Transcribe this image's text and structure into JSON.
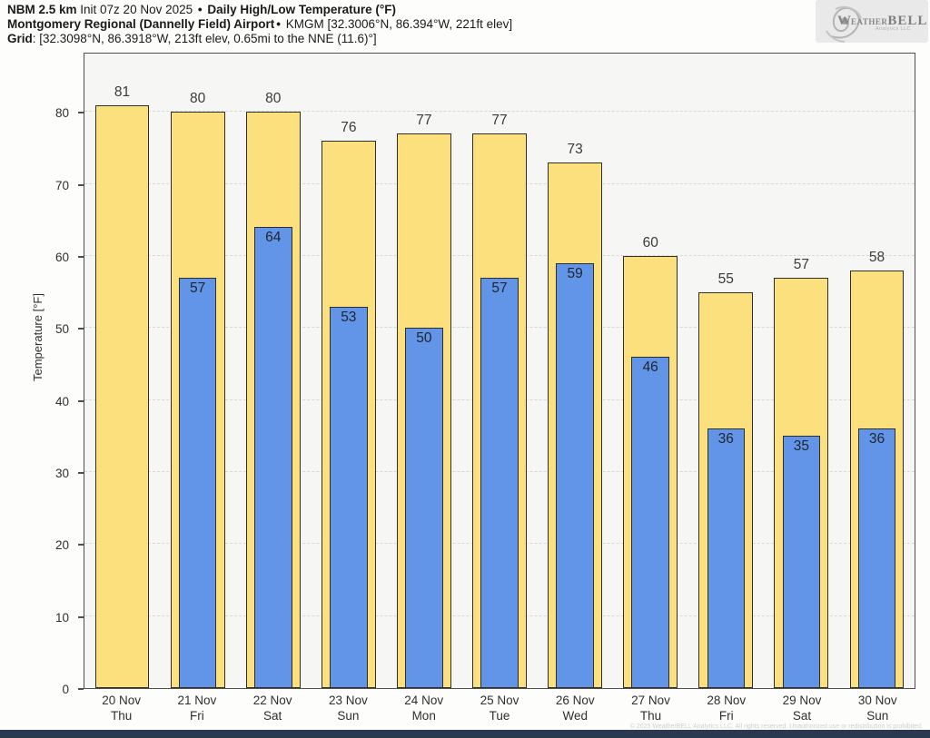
{
  "header": {
    "model": "NBM 2.5 km",
    "init": " Init 07z 20 Nov 2025 ",
    "separator": "•",
    "product": " Daily High/Low Temperature (°F)",
    "station": "Montgomery Regional (Dannelly Field) Airport",
    "station_info": " KMGM [32.3006°N, 86.394°W, 221ft elev]",
    "grid_label": "Grid",
    "grid_info": ": [32.3098°N, 86.3918°W, 213ft elev, 0.65mi to the NNE (11.6)°]"
  },
  "logo": {
    "brand_w": "W",
    "brand_eather": "EATHER",
    "brand_bell": "BELL",
    "subtext": "Analytics LLC"
  },
  "footer": {
    "copyright": "© 2025 WeatherBELL Analytics LLC. All rights reserved. Unauthorized use or redistribution is prohibited."
  },
  "chart_data": {
    "type": "bar",
    "title": "Daily High/Low Temperature (°F)",
    "categories": [
      "20 Nov",
      "21 Nov",
      "22 Nov",
      "23 Nov",
      "24 Nov",
      "25 Nov",
      "26 Nov",
      "27 Nov",
      "28 Nov",
      "29 Nov",
      "30 Nov"
    ],
    "weekdays": [
      "Thu",
      "Fri",
      "Sat",
      "Sun",
      "Mon",
      "Tue",
      "Wed",
      "Thu",
      "Fri",
      "Sat",
      "Sun"
    ],
    "series": [
      {
        "name": "High",
        "color": "#FBE07D",
        "values": [
          81,
          80,
          80,
          76,
          77,
          77,
          73,
          60,
          55,
          57,
          58
        ]
      },
      {
        "name": "Low",
        "color": "#6295E8",
        "values": [
          null,
          57,
          64,
          53,
          50,
          57,
          59,
          46,
          36,
          35,
          36
        ]
      }
    ],
    "ylabel": "Temperature [°F]",
    "ylim": [
      0,
      88
    ],
    "yticks": [
      0,
      10,
      20,
      30,
      40,
      50,
      60,
      70,
      80
    ],
    "grid": "horizontal-dashed",
    "legend": "none",
    "bar_outline": "#2e2e2e",
    "plot_bg": "#f6f6f4"
  }
}
